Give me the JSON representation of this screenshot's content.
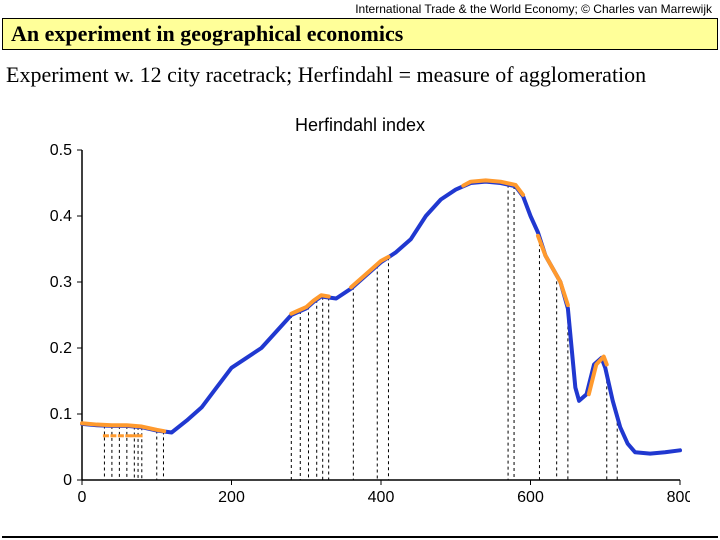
{
  "attribution": "International Trade & the World Economy;  ©  Charles van Marrewijk",
  "slide_title": "An experiment in geographical economics",
  "subtitle": "Experiment w. 12 city racetrack; Herfindahl = measure of agglomeration",
  "chart": {
    "type": "line",
    "title": "Herfindahl index",
    "title_fontsize": 18,
    "xlim": [
      0,
      800
    ],
    "ylim": [
      0,
      0.5
    ],
    "xticks": [
      0,
      200,
      400,
      600,
      800
    ],
    "yticks": [
      0,
      0.1,
      0.2,
      0.3,
      0.4,
      0.5
    ],
    "tick_fontsize": 16,
    "background_color": "#ffffff",
    "axis_color": "#000000",
    "blue_line": {
      "color": "#2038d0",
      "width": 4,
      "points": [
        [
          0,
          0.085
        ],
        [
          20,
          0.083
        ],
        [
          40,
          0.082
        ],
        [
          60,
          0.082
        ],
        [
          80,
          0.08
        ],
        [
          100,
          0.075
        ],
        [
          120,
          0.072
        ],
        [
          140,
          0.09
        ],
        [
          160,
          0.11
        ],
        [
          180,
          0.14
        ],
        [
          200,
          0.17
        ],
        [
          220,
          0.185
        ],
        [
          240,
          0.2
        ],
        [
          260,
          0.225
        ],
        [
          280,
          0.25
        ],
        [
          290,
          0.255
        ],
        [
          300,
          0.26
        ],
        [
          310,
          0.27
        ],
        [
          320,
          0.278
        ],
        [
          340,
          0.275
        ],
        [
          360,
          0.29
        ],
        [
          380,
          0.31
        ],
        [
          400,
          0.33
        ],
        [
          420,
          0.345
        ],
        [
          440,
          0.365
        ],
        [
          460,
          0.4
        ],
        [
          480,
          0.425
        ],
        [
          500,
          0.44
        ],
        [
          520,
          0.45
        ],
        [
          540,
          0.452
        ],
        [
          560,
          0.45
        ],
        [
          580,
          0.445
        ],
        [
          590,
          0.43
        ],
        [
          600,
          0.4
        ],
        [
          610,
          0.375
        ],
        [
          620,
          0.34
        ],
        [
          640,
          0.3
        ],
        [
          650,
          0.26
        ],
        [
          655,
          0.2
        ],
        [
          660,
          0.14
        ],
        [
          665,
          0.12
        ],
        [
          675,
          0.13
        ],
        [
          685,
          0.175
        ],
        [
          695,
          0.185
        ],
        [
          700,
          0.17
        ],
        [
          710,
          0.12
        ],
        [
          720,
          0.08
        ],
        [
          730,
          0.055
        ],
        [
          740,
          0.042
        ],
        [
          760,
          0.04
        ],
        [
          780,
          0.042
        ],
        [
          800,
          0.045
        ]
      ]
    },
    "orange_segments": {
      "color": "#ff9a2e",
      "width": 4,
      "segments": [
        [
          [
            0,
            0.086
          ],
          [
            20,
            0.084
          ],
          [
            40,
            0.083
          ],
          [
            60,
            0.083
          ],
          [
            80,
            0.081
          ],
          [
            100,
            0.076
          ],
          [
            110,
            0.074
          ]
        ],
        [
          [
            280,
            0.252
          ],
          [
            290,
            0.257
          ],
          [
            300,
            0.262
          ],
          [
            310,
            0.272
          ],
          [
            320,
            0.28
          ],
          [
            330,
            0.278
          ]
        ],
        [
          [
            360,
            0.292
          ],
          [
            380,
            0.312
          ],
          [
            400,
            0.332
          ],
          [
            410,
            0.338
          ]
        ],
        [
          [
            510,
            0.446
          ],
          [
            520,
            0.452
          ],
          [
            540,
            0.454
          ],
          [
            560,
            0.452
          ],
          [
            580,
            0.447
          ],
          [
            590,
            0.432
          ]
        ],
        [
          [
            610,
            0.37
          ],
          [
            620,
            0.34
          ],
          [
            640,
            0.3
          ],
          [
            650,
            0.265
          ]
        ],
        [
          [
            678,
            0.13
          ],
          [
            688,
            0.175
          ],
          [
            698,
            0.187
          ],
          [
            702,
            0.175
          ]
        ]
      ]
    },
    "vlines": {
      "color": "#000000",
      "dash": "3,3",
      "width": 1,
      "groups": [
        [
          30,
          40,
          50,
          60,
          70,
          75,
          80,
          100,
          109
        ],
        [
          280,
          292,
          303,
          314,
          322,
          330
        ],
        [
          363,
          395,
          410
        ],
        [
          570,
          578
        ],
        [
          612,
          635,
          650
        ],
        [
          702,
          716
        ]
      ]
    },
    "short_orange_bars": {
      "color": "#ff9a2e",
      "y": 0.067,
      "height": 0.006,
      "xs": [
        32,
        42,
        52,
        62,
        69,
        77
      ]
    }
  },
  "slide_bg": "#ffff99"
}
